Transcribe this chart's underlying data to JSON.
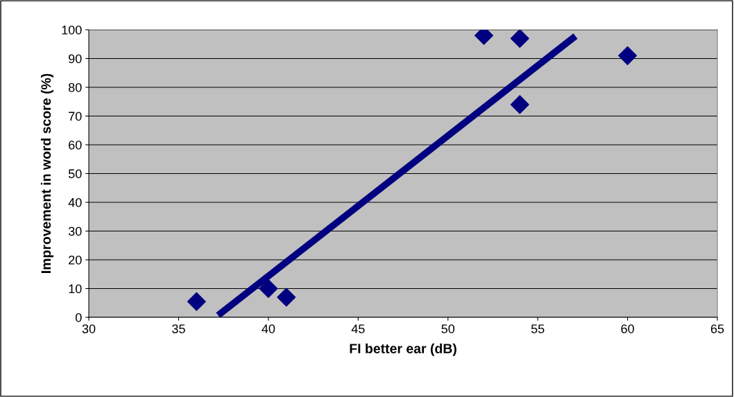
{
  "chart_data": {
    "type": "scatter",
    "xlabel": "FI better ear (dB)",
    "ylabel": "Improvement in word score (%)",
    "xlim": [
      30,
      65
    ],
    "xticks": [
      30,
      35,
      40,
      45,
      50,
      55,
      60,
      65
    ],
    "ylim": [
      0,
      100
    ],
    "yticks": [
      0,
      10,
      20,
      30,
      40,
      50,
      60,
      70,
      80,
      90,
      100
    ],
    "grid": "y",
    "series": [
      {
        "marker": "diamond",
        "color": "#000080",
        "x": [
          36,
          40,
          41,
          52,
          54,
          54,
          60
        ],
        "values": [
          5.5,
          10,
          7,
          98,
          97,
          74,
          91
        ]
      },
      {
        "type": "line",
        "color": "#000080",
        "x": [
          37.2,
          57.1
        ],
        "values": [
          0.7,
          97.8
        ]
      }
    ]
  }
}
